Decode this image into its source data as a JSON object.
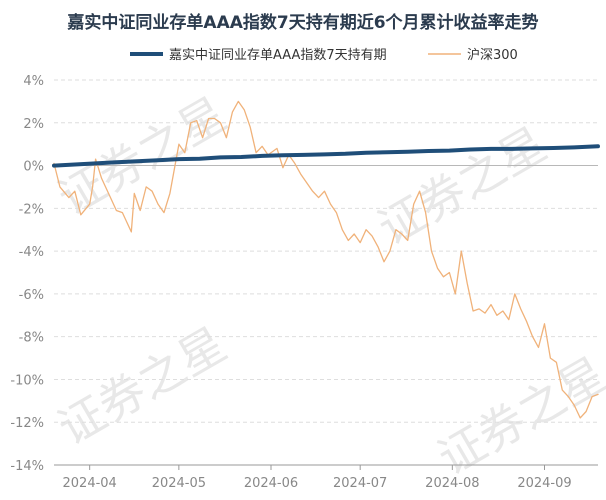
{
  "chart_data": {
    "type": "line",
    "title": "嘉实中证同业存单AAA指数7天持有期近6个月累计收益率走势",
    "y_unit": "%",
    "ylim": [
      -14,
      4
    ],
    "y_ticks": [
      4,
      2,
      0,
      -2,
      -4,
      -6,
      -8,
      -10,
      -12,
      -14
    ],
    "y_tick_labels": [
      "4%",
      "2%",
      "0%",
      "-2%",
      "-4%",
      "-6%",
      "-8%",
      "-10%",
      "-12%",
      "-14%"
    ],
    "x_tick_labels": [
      "2024-04",
      "2024-05",
      "2024-06",
      "2024-07",
      "2024-08",
      "2024-09"
    ],
    "x_tick_dates": [
      "2024-04-01",
      "2024-05-01",
      "2024-06-01",
      "2024-07-01",
      "2024-08-01",
      "2024-09-01"
    ],
    "x_range": [
      "2024-03-20",
      "2024-09-19"
    ],
    "grid": "horizontal",
    "legend_position": "top",
    "watermark": "证券之星",
    "series": [
      {
        "name": "嘉实中证同业存单AAA指数7天持有期",
        "color": "#1f4e79",
        "points": [
          [
            "2024-03-20",
            0.0
          ],
          [
            "2024-03-27",
            0.05
          ],
          [
            "2024-04-03",
            0.1
          ],
          [
            "2024-04-10",
            0.15
          ],
          [
            "2024-04-17",
            0.2
          ],
          [
            "2024-04-24",
            0.25
          ],
          [
            "2024-05-01",
            0.3
          ],
          [
            "2024-05-08",
            0.32
          ],
          [
            "2024-05-15",
            0.38
          ],
          [
            "2024-05-22",
            0.4
          ],
          [
            "2024-05-29",
            0.45
          ],
          [
            "2024-06-05",
            0.48
          ],
          [
            "2024-06-12",
            0.5
          ],
          [
            "2024-06-19",
            0.52
          ],
          [
            "2024-06-26",
            0.55
          ],
          [
            "2024-07-03",
            0.6
          ],
          [
            "2024-07-10",
            0.62
          ],
          [
            "2024-07-17",
            0.65
          ],
          [
            "2024-07-24",
            0.68
          ],
          [
            "2024-07-31",
            0.7
          ],
          [
            "2024-08-07",
            0.75
          ],
          [
            "2024-08-14",
            0.78
          ],
          [
            "2024-08-21",
            0.78
          ],
          [
            "2024-08-28",
            0.8
          ],
          [
            "2024-09-04",
            0.82
          ],
          [
            "2024-09-11",
            0.85
          ],
          [
            "2024-09-19",
            0.9
          ]
        ]
      },
      {
        "name": "沪深300",
        "color": "#f0b27a",
        "points": [
          [
            "2024-03-20",
            0.1
          ],
          [
            "2024-03-22",
            -1.0
          ],
          [
            "2024-03-25",
            -1.5
          ],
          [
            "2024-03-27",
            -1.2
          ],
          [
            "2024-03-29",
            -2.3
          ],
          [
            "2024-04-01",
            -1.8
          ],
          [
            "2024-04-02",
            -1.0
          ],
          [
            "2024-04-03",
            0.3
          ],
          [
            "2024-04-05",
            -0.6
          ],
          [
            "2024-04-08",
            -1.5
          ],
          [
            "2024-04-10",
            -2.1
          ],
          [
            "2024-04-12",
            -2.2
          ],
          [
            "2024-04-15",
            -3.1
          ],
          [
            "2024-04-16",
            -1.3
          ],
          [
            "2024-04-18",
            -2.1
          ],
          [
            "2024-04-20",
            -1.0
          ],
          [
            "2024-04-22",
            -1.2
          ],
          [
            "2024-04-24",
            -1.8
          ],
          [
            "2024-04-26",
            -2.2
          ],
          [
            "2024-04-28",
            -1.3
          ],
          [
            "2024-05-01",
            1.0
          ],
          [
            "2024-05-03",
            0.6
          ],
          [
            "2024-05-05",
            2.0
          ],
          [
            "2024-05-07",
            2.1
          ],
          [
            "2024-05-09",
            1.3
          ],
          [
            "2024-05-11",
            2.2
          ],
          [
            "2024-05-13",
            2.2
          ],
          [
            "2024-05-15",
            2.0
          ],
          [
            "2024-05-17",
            1.3
          ],
          [
            "2024-05-19",
            2.5
          ],
          [
            "2024-05-21",
            3.0
          ],
          [
            "2024-05-23",
            2.6
          ],
          [
            "2024-05-25",
            1.8
          ],
          [
            "2024-05-27",
            0.6
          ],
          [
            "2024-05-29",
            0.9
          ],
          [
            "2024-05-31",
            0.5
          ],
          [
            "2024-06-03",
            0.8
          ],
          [
            "2024-06-05",
            -0.1
          ],
          [
            "2024-06-07",
            0.5
          ],
          [
            "2024-06-09",
            0.1
          ],
          [
            "2024-06-11",
            -0.4
          ],
          [
            "2024-06-13",
            -0.8
          ],
          [
            "2024-06-15",
            -1.2
          ],
          [
            "2024-06-17",
            -1.5
          ],
          [
            "2024-06-19",
            -1.2
          ],
          [
            "2024-06-21",
            -1.8
          ],
          [
            "2024-06-23",
            -2.2
          ],
          [
            "2024-06-25",
            -3.0
          ],
          [
            "2024-06-27",
            -3.5
          ],
          [
            "2024-06-29",
            -3.2
          ],
          [
            "2024-07-01",
            -3.6
          ],
          [
            "2024-07-03",
            -3.0
          ],
          [
            "2024-07-05",
            -3.3
          ],
          [
            "2024-07-07",
            -3.8
          ],
          [
            "2024-07-09",
            -4.5
          ],
          [
            "2024-07-11",
            -4.0
          ],
          [
            "2024-07-13",
            -3.0
          ],
          [
            "2024-07-15",
            -3.2
          ],
          [
            "2024-07-17",
            -3.5
          ],
          [
            "2024-07-19",
            -1.8
          ],
          [
            "2024-07-21",
            -1.2
          ],
          [
            "2024-07-23",
            -2.2
          ],
          [
            "2024-07-25",
            -4.0
          ],
          [
            "2024-07-27",
            -4.8
          ],
          [
            "2024-07-29",
            -5.2
          ],
          [
            "2024-07-31",
            -5.0
          ],
          [
            "2024-08-02",
            -6.0
          ],
          [
            "2024-08-04",
            -4.0
          ],
          [
            "2024-08-06",
            -5.5
          ],
          [
            "2024-08-08",
            -6.8
          ],
          [
            "2024-08-10",
            -6.7
          ],
          [
            "2024-08-12",
            -6.9
          ],
          [
            "2024-08-14",
            -6.5
          ],
          [
            "2024-08-16",
            -7.0
          ],
          [
            "2024-08-18",
            -6.8
          ],
          [
            "2024-08-20",
            -7.2
          ],
          [
            "2024-08-22",
            -6.0
          ],
          [
            "2024-08-24",
            -6.7
          ],
          [
            "2024-08-26",
            -7.3
          ],
          [
            "2024-08-28",
            -8.0
          ],
          [
            "2024-08-30",
            -8.5
          ],
          [
            "2024-09-01",
            -7.4
          ],
          [
            "2024-09-03",
            -9.0
          ],
          [
            "2024-09-05",
            -9.2
          ],
          [
            "2024-09-07",
            -10.5
          ],
          [
            "2024-09-09",
            -10.8
          ],
          [
            "2024-09-11",
            -11.2
          ],
          [
            "2024-09-13",
            -11.8
          ],
          [
            "2024-09-15",
            -11.5
          ],
          [
            "2024-09-17",
            -10.8
          ],
          [
            "2024-09-19",
            -10.7
          ]
        ]
      }
    ]
  }
}
